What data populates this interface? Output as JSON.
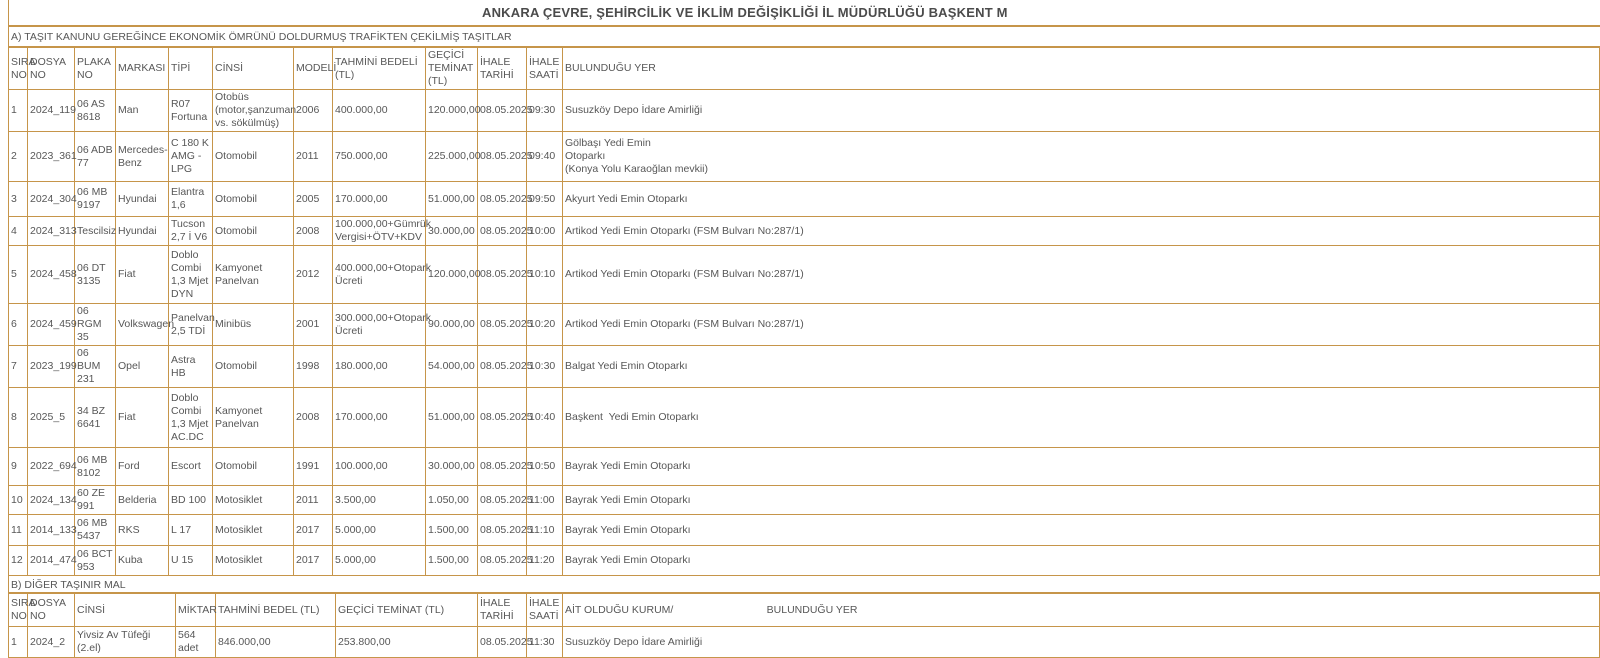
{
  "title": "ANKARA ÇEVRE, ŞEHİRCİLİK VE İKLİM DEĞİŞİKLİĞİ İL MÜDÜRLÜĞÜ BAŞKENT M",
  "colors": {
    "table_border": "#c6954a",
    "text": "#575757"
  },
  "section_a": {
    "heading": "A) TAŞIT KANUNU GEREĞİNCE EKONOMİK ÖMRÜNÜ DOLDURMUŞ  TRAFİKTEN ÇEKİLMİŞ TAŞITLAR",
    "columns": [
      "SIRA NO",
      "DOSYA NO",
      "PLAKA NO",
      "MARKASI",
      "TİPİ",
      "CİNSİ",
      "MODELİ",
      "TAHMİNİ BEDELİ (TL)",
      "GEÇİCİ TEMİNAT (TL)",
      "İHALE TARİHİ",
      "İHALE SAATİ",
      "BULUNDUĞU YER"
    ],
    "rows": [
      [
        "1",
        "2024_119",
        "06 AS 8618",
        "Man",
        "R07 Fortuna",
        "Otobüs (motor,şanzuman vs. sökülmüş)",
        "2006",
        "400.000,00",
        "120.000,00",
        "08.05.2025",
        "09:30",
        "Susuzköy Depo İdare Amirliği"
      ],
      [
        "2",
        "2023_361",
        "06 ADB 77",
        "Mercedes-Benz",
        "C 180 K AMG - LPG",
        "Otomobil",
        "2011",
        "750.000,00",
        "225.000,00",
        "08.05.2025",
        "09:40",
        "Gölbaşı Yedi Emin\nOtoparkı\n(Konya Yolu Karaoğlan mevkii)"
      ],
      [
        "3",
        "2024_304",
        "06 MB 9197",
        "Hyundai",
        "Elantra 1,6",
        "Otomobil",
        "2005",
        "170.000,00",
        "51.000,00",
        "08.05.2025",
        "09:50",
        "Akyurt Yedi Emin Otoparkı"
      ],
      [
        "4",
        "2024_313",
        "Tescilsiz",
        "Hyundai",
        "Tucson 2,7 İ V6",
        "Otomobil",
        "2008",
        "100.000,00+Gümrük Vergisi+ÖTV+KDV",
        "30.000,00",
        "08.05.2025",
        "10:00",
        "Artikod Yedi Emin Otoparkı (FSM Bulvarı No:287/1)"
      ],
      [
        "5",
        "2024_458",
        "06 DT 3135",
        "Fiat",
        "Doblo Combi 1,3 Mjet DYN",
        "Kamyonet Panelvan",
        "2012",
        "400.000,00+Otopark Ücreti",
        "120.000,00",
        "08.05.2025",
        "10:10",
        "Artikod Yedi Emin Otoparkı (FSM Bulvarı No:287/1)"
      ],
      [
        "6",
        "2024_459",
        "06 RGM 35",
        "Volkswagen",
        "Panelvan 2,5 TDİ",
        "Minibüs",
        "2001",
        "300.000,00+Otopark Ücreti",
        "90.000,00",
        "08.05.2025",
        "10:20",
        "Artikod Yedi Emin Otoparkı (FSM Bulvarı No:287/1)"
      ],
      [
        "7",
        "2023_199",
        "06 BUM 231",
        "Opel",
        "Astra HB",
        "Otomobil",
        "1998",
        "180.000,00",
        "54.000,00",
        "08.05.2025",
        "10:30",
        "Balgat Yedi Emin Otoparkı"
      ],
      [
        "8",
        "2025_5",
        "34 BZ 6641",
        "Fiat",
        "Doblo Combi 1,3 Mjet AC.DC",
        "Kamyonet Panelvan",
        "2008",
        "170.000,00",
        "51.000,00",
        "08.05.2025",
        "10:40",
        "Başkent  Yedi Emin Otoparkı"
      ],
      [
        "9",
        "2022_694",
        "06 MB 8102",
        "Ford",
        "Escort",
        "Otomobil",
        "1991",
        "100.000,00",
        "30.000,00",
        "08.05.2025",
        "10:50",
        "Bayrak Yedi Emin Otoparkı"
      ],
      [
        "10",
        "2024_134",
        "60 ZE 991",
        "Belderia",
        "BD 100",
        "Motosiklet",
        "2011",
        "3.500,00",
        "1.050,00",
        "08.05.2025",
        "11:00",
        "Bayrak Yedi Emin Otoparkı"
      ],
      [
        "11",
        "2014_133",
        "06 MB 5437",
        "RKS",
        "L 17",
        "Motosiklet",
        "2017",
        "5.000,00",
        "1.500,00",
        "08.05.2025",
        "11:10",
        "Bayrak Yedi Emin Otoparkı"
      ],
      [
        "12",
        "2014_474",
        "06 BCT 953",
        "Kuba",
        "U 15",
        "Motosiklet",
        "2017",
        "5.000,00",
        "1.500,00",
        "08.05.2025",
        "11:20",
        "Bayrak Yedi Emin Otoparkı"
      ]
    ]
  },
  "section_b": {
    "heading": "B) DİĞER TAŞINIR MAL",
    "columns": [
      "SIRA NO",
      "DOSYA NO",
      "CİNSİ",
      "MİKTAR",
      "TAHMİNİ BEDEL (TL)",
      "GEÇİCİ TEMİNAT (TL)",
      "İHALE TARİHİ",
      "İHALE SAATİ",
      "AİT OLDUĞU KURUM/                                BULUNDUĞU YER"
    ],
    "rows": [
      [
        "1",
        "2024_2",
        "Yivsiz Av Tüfeği (2.el)",
        "564 adet",
        "846.000,00",
        "253.800,00",
        "08.05.2025",
        "11:30",
        "Susuzköy Depo İdare Amirliği"
      ]
    ]
  }
}
